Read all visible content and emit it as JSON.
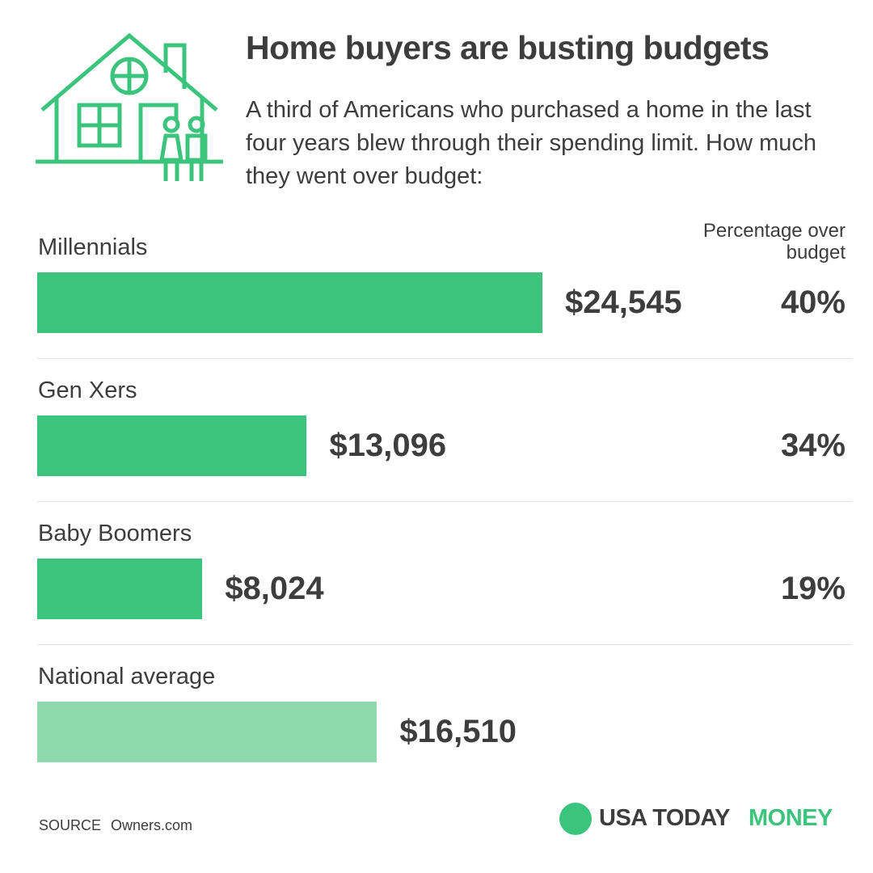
{
  "chart_data": {
    "type": "bar",
    "title": "Home buyers are busting budgets",
    "subtitle": "A third of Americans who purchased a home in the last four years blew through their spending limit. How much they went over budget:",
    "categories": [
      "Millennials",
      "Gen Xers",
      "Baby Boomers",
      "National average"
    ],
    "values": [
      24545,
      13096,
      8024,
      16510
    ],
    "value_labels": [
      "$24,545",
      "$13,096",
      "$8,024",
      "$16,510"
    ],
    "colors": [
      "#3cc47c",
      "#3cc47c",
      "#3cc47c",
      "#8dd9ad"
    ],
    "percent_title": "Percentage over budget",
    "percent_values": [
      40,
      34,
      19,
      null
    ],
    "percent_labels": [
      "40%",
      "34%",
      "19%",
      null
    ],
    "source_label": "SOURCE",
    "source": "Owners.com",
    "logo": [
      "USA TODAY",
      "MONEY"
    ]
  }
}
